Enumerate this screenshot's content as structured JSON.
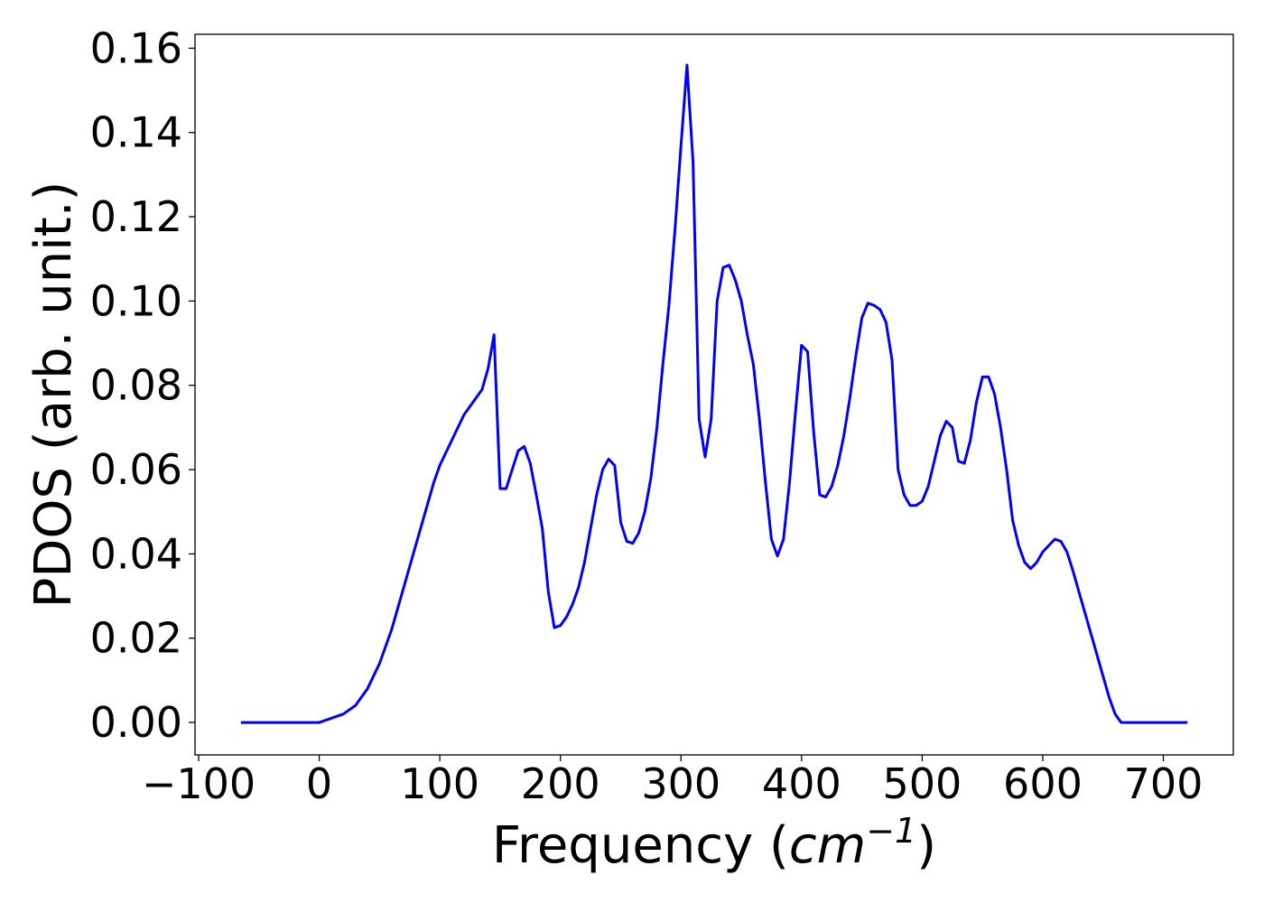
{
  "chart_data": {
    "type": "line",
    "xlabel_prefix": "Frequency (",
    "xlabel_unit": "cm",
    "xlabel_exponent": "−1",
    "xlabel_suffix": ")",
    "ylabel": "PDOS (arb. unit.)",
    "xlim": [
      -103,
      758
    ],
    "ylim": [
      -0.0077,
      0.1633
    ],
    "xticks": [
      -100,
      0,
      100,
      200,
      300,
      400,
      500,
      600,
      700
    ],
    "xtick_labels": [
      "−100",
      "0",
      "100",
      "200",
      "300",
      "400",
      "500",
      "600",
      "700"
    ],
    "yticks": [
      0.0,
      0.02,
      0.04,
      0.06,
      0.08,
      0.1,
      0.12,
      0.14,
      0.16
    ],
    "ytick_labels": [
      "0.00",
      "0.02",
      "0.04",
      "0.06",
      "0.08",
      "0.10",
      "0.12",
      "0.14",
      "0.16"
    ],
    "grid": false,
    "series": [
      {
        "color": "#0000ff",
        "x": [
          -65,
          -40,
          -20,
          0,
          10,
          20,
          30,
          40,
          50,
          60,
          70,
          80,
          90,
          95,
          100,
          105,
          110,
          115,
          120,
          125,
          130,
          135,
          140,
          145,
          150,
          155,
          160,
          165,
          170,
          175,
          180,
          185,
          190,
          195,
          200,
          205,
          210,
          215,
          220,
          225,
          230,
          235,
          240,
          245,
          250,
          255,
          260,
          265,
          270,
          275,
          280,
          285,
          290,
          295,
          300,
          305,
          310,
          315,
          320,
          325,
          330,
          335,
          340,
          345,
          350,
          355,
          360,
          365,
          370,
          375,
          380,
          385,
          390,
          395,
          400,
          405,
          410,
          415,
          420,
          425,
          430,
          435,
          440,
          445,
          450,
          455,
          460,
          465,
          470,
          475,
          480,
          485,
          490,
          495,
          500,
          505,
          510,
          515,
          520,
          525,
          530,
          535,
          540,
          545,
          550,
          555,
          560,
          565,
          570,
          575,
          580,
          585,
          590,
          595,
          600,
          605,
          610,
          615,
          620,
          625,
          630,
          635,
          640,
          645,
          650,
          655,
          660,
          665,
          670,
          680,
          700,
          720
        ],
        "y": [
          0.0,
          0.0,
          0.0,
          0.0,
          0.001,
          0.002,
          0.004,
          0.008,
          0.014,
          0.022,
          0.032,
          0.042,
          0.052,
          0.057,
          0.061,
          0.064,
          0.067,
          0.07,
          0.073,
          0.075,
          0.077,
          0.079,
          0.084,
          0.092,
          0.0555,
          0.0555,
          0.06,
          0.0645,
          0.0655,
          0.0615,
          0.054,
          0.046,
          0.031,
          0.0225,
          0.023,
          0.025,
          0.028,
          0.032,
          0.038,
          0.046,
          0.054,
          0.06,
          0.0625,
          0.061,
          0.0475,
          0.043,
          0.0425,
          0.045,
          0.05,
          0.058,
          0.07,
          0.085,
          0.099,
          0.117,
          0.137,
          0.156,
          0.133,
          0.072,
          0.063,
          0.072,
          0.1,
          0.108,
          0.1085,
          0.105,
          0.1,
          0.092,
          0.085,
          0.072,
          0.057,
          0.0435,
          0.0395,
          0.0435,
          0.057,
          0.074,
          0.0895,
          0.088,
          0.069,
          0.054,
          0.0535,
          0.056,
          0.061,
          0.068,
          0.077,
          0.087,
          0.096,
          0.0995,
          0.099,
          0.098,
          0.095,
          0.086,
          0.06,
          0.054,
          0.0515,
          0.0515,
          0.0525,
          0.056,
          0.062,
          0.068,
          0.0715,
          0.07,
          0.062,
          0.0615,
          0.067,
          0.076,
          0.082,
          0.082,
          0.078,
          0.07,
          0.06,
          0.048,
          0.042,
          0.038,
          0.0365,
          0.038,
          0.0405,
          0.042,
          0.0435,
          0.043,
          0.0405,
          0.036,
          0.031,
          0.026,
          0.021,
          0.016,
          0.011,
          0.006,
          0.002,
          0.0,
          0.0,
          0.0,
          0.0,
          0.0
        ]
      }
    ]
  }
}
